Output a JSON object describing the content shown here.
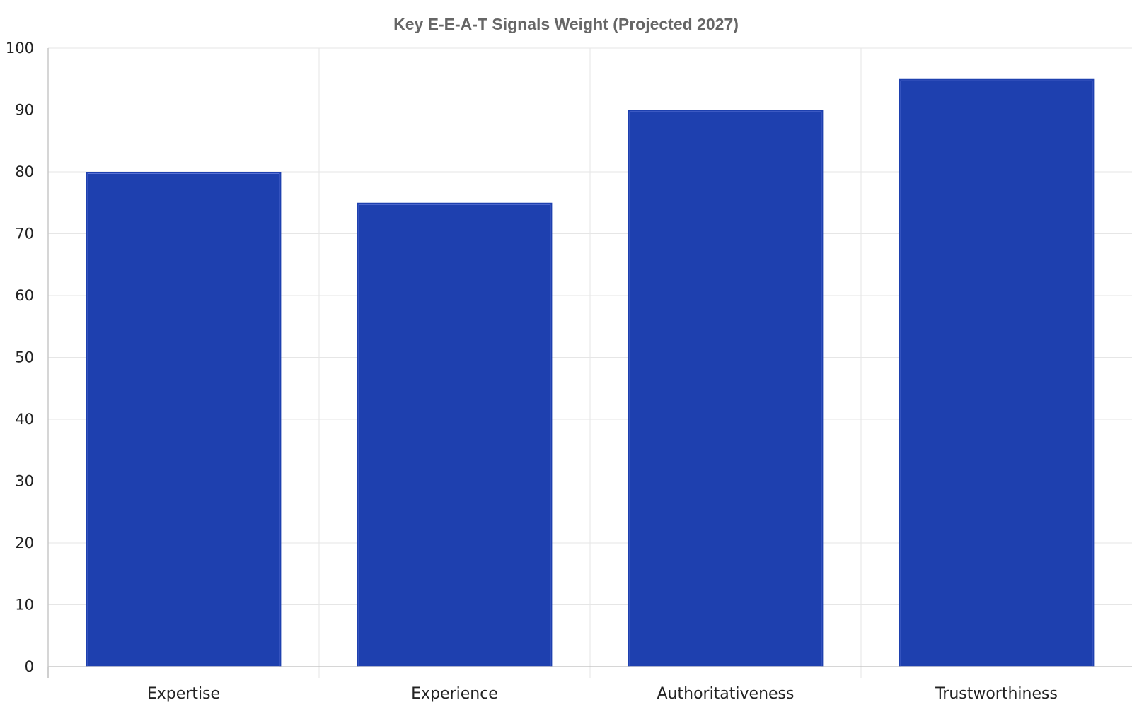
{
  "chart_data": {
    "type": "bar",
    "title": "Key E-E-A-T Signals Weight (Projected 2027)",
    "xlabel": "",
    "ylabel": "",
    "categories": [
      "Expertise",
      "Experience",
      "Authoritativeness",
      "Trustworthiness"
    ],
    "values": [
      80,
      75,
      90,
      95
    ],
    "ylim": [
      0,
      100
    ],
    "yticks": [
      0,
      10,
      20,
      30,
      40,
      50,
      60,
      70,
      80,
      90,
      100
    ],
    "grid": true,
    "legend": "none",
    "colors": {
      "bar": "#1e40af",
      "bar_inner_stroke": "#5a72d6"
    }
  }
}
